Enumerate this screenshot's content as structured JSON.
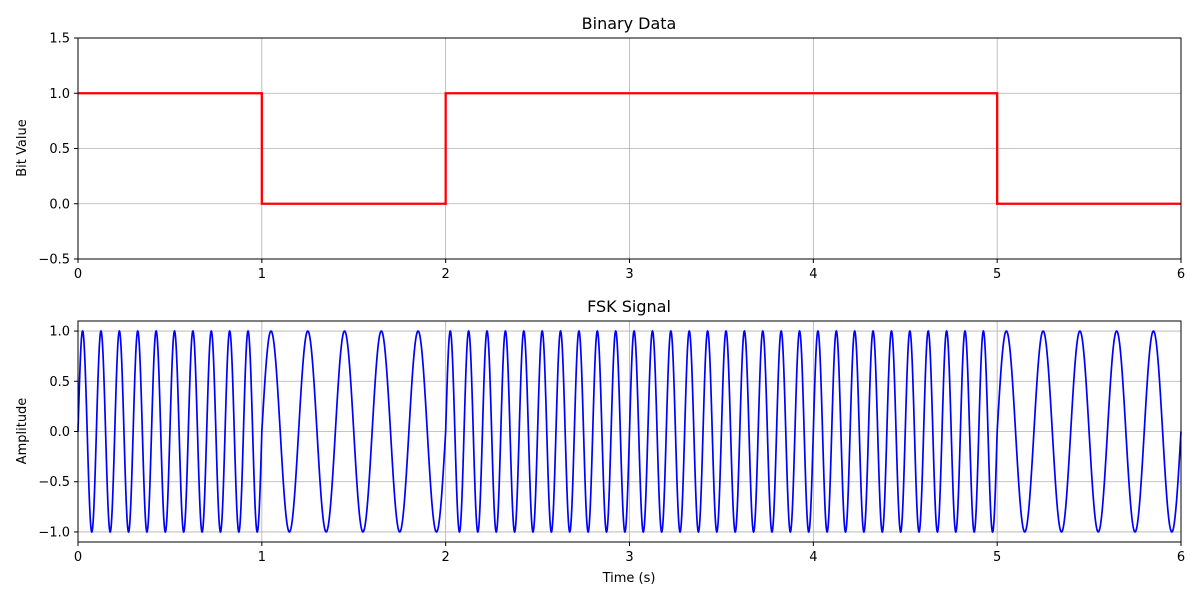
{
  "chart_data": [
    {
      "type": "line",
      "title": "Binary Data",
      "xlabel": "",
      "ylabel": "Bit Value",
      "xlim": [
        0,
        6
      ],
      "ylim": [
        -0.5,
        1.5
      ],
      "grid": true,
      "line_style": "step",
      "x_ticks": [
        "0",
        "1",
        "2",
        "3",
        "4",
        "5",
        "6"
      ],
      "y_ticks": [
        "−0.5",
        "0.0",
        "0.5",
        "1.0",
        "1.5"
      ],
      "series": [
        {
          "color": "#ff0000",
          "x": [
            0,
            1,
            1,
            2,
            2,
            5,
            5,
            6
          ],
          "y": [
            1,
            1,
            0,
            0,
            1,
            1,
            0,
            0
          ],
          "bits": [
            1,
            0,
            1,
            1,
            1,
            0
          ]
        }
      ]
    },
    {
      "type": "line",
      "title": "FSK Signal",
      "xlabel": "Time (s)",
      "ylabel": "Amplitude",
      "xlim": [
        0,
        6
      ],
      "ylim": [
        -1.1,
        1.1
      ],
      "grid": true,
      "x_ticks": [
        "0",
        "1",
        "2",
        "3",
        "4",
        "5",
        "6"
      ],
      "y_ticks": [
        "−1.0",
        "−0.5",
        "0.0",
        "0.5",
        "1.0"
      ],
      "series": [
        {
          "color": "#0000ff",
          "function": "sin(2*pi*f*t)",
          "bit_duration_s": 1,
          "bits": [
            1,
            0,
            1,
            1,
            1,
            0
          ],
          "freq_for_bit_1_hz": 10,
          "freq_for_bit_0_hz": 5
        }
      ]
    }
  ]
}
